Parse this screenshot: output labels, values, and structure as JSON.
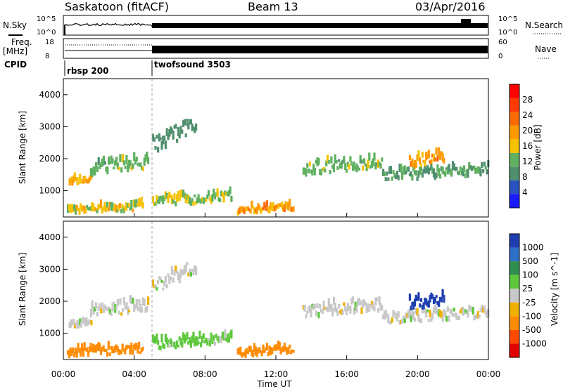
{
  "header": {
    "station": "Saskatoon (fitACF)",
    "beam": "Beam 13",
    "date": "03/Apr/2016"
  },
  "top_panels": {
    "nsky_label": "N.Sky",
    "nsky_ticks": [
      "10^5",
      "10^0"
    ],
    "nsearch_label": "N.Search",
    "nsearch_ticks": [
      "10^5",
      "10^0"
    ],
    "freq_label": "Freq.",
    "freq_unit": "[MHz]",
    "freq_ticks": [
      "18",
      "8"
    ],
    "nave_label": "Nave",
    "nave_ticks": [
      "60",
      "0"
    ],
    "cpid_label": "CPID",
    "cpid_segments": [
      {
        "name": "rbsp 200",
        "start_hour": 0,
        "end_hour": 5.0
      },
      {
        "name": "twofsound 3503",
        "start_hour": 5.0,
        "end_hour": 24
      }
    ]
  },
  "axes": {
    "x_title": "Time UT",
    "x_ticks": [
      "00:00",
      "04:00",
      "08:00",
      "12:00",
      "16:00",
      "20:00",
      "00:00"
    ],
    "y_title": "Slant Range [km]",
    "y_ticks": [
      "1000",
      "2000",
      "3000",
      "4000"
    ]
  },
  "colorbars": {
    "power": {
      "title": "Power [dB]",
      "ticks": [
        "4",
        "8",
        "12",
        "16",
        "20",
        "24",
        "28"
      ],
      "colors": [
        "#1a1aff",
        "#2a52be",
        "#4f8f6e",
        "#5fb060",
        "#f5c200",
        "#ff9a00",
        "#ff6a00",
        "#ff3a00",
        "#ff0000"
      ]
    },
    "velocity": {
      "title": "Velocity [m s^-1]",
      "ticks": [
        "1000",
        "500",
        "100",
        "25",
        "-25",
        "-100",
        "-500",
        "-1000"
      ],
      "colors": [
        "#1f3fb0",
        "#2e6fc8",
        "#2f8f4f",
        "#5dc83c",
        "#c8c8c8",
        "#f0b000",
        "#ff8c00",
        "#ff4a00",
        "#e00000"
      ]
    }
  },
  "chart_data": [
    {
      "type": "heatmap",
      "title": "Power [dB]",
      "xlabel": "Time UT",
      "ylabel": "Slant Range [km]",
      "xlim": [
        0,
        24
      ],
      "ylim": [
        180,
        4500
      ],
      "scatter_bands": [
        {
          "t0": 0.3,
          "t1": 1.6,
          "r0": 1150,
          "r1": 1500,
          "level": 18
        },
        {
          "t0": 1.5,
          "t1": 4.8,
          "r0": 1500,
          "r1": 2250,
          "level": 12
        },
        {
          "t0": 5.0,
          "t1": 7.5,
          "r0": 2200,
          "r1": 3200,
          "level": 8
        },
        {
          "t0": 0.2,
          "t1": 4.5,
          "r0": 250,
          "r1": 700,
          "level": 16
        },
        {
          "t0": 5.0,
          "t1": 9.5,
          "r0": 500,
          "r1": 1100,
          "level": 14
        },
        {
          "t0": 9.8,
          "t1": 13.0,
          "r0": 250,
          "r1": 700,
          "level": 20
        },
        {
          "t0": 13.5,
          "t1": 18.0,
          "r0": 1500,
          "r1": 2300,
          "level": 12
        },
        {
          "t0": 18.0,
          "t1": 24.0,
          "r0": 1300,
          "r1": 2000,
          "level": 10
        },
        {
          "t0": 19.5,
          "t1": 21.5,
          "r0": 1700,
          "r1": 2500,
          "level": 20
        }
      ]
    },
    {
      "type": "heatmap",
      "title": "Velocity [m s^-1]",
      "xlabel": "Time UT",
      "ylabel": "Slant Range [km]",
      "xlim": [
        0,
        24
      ],
      "ylim": [
        180,
        4500
      ],
      "scatter_bands": [
        {
          "t0": 0.3,
          "t1": 1.6,
          "r0": 1150,
          "r1": 1500,
          "level": 0
        },
        {
          "t0": 1.5,
          "t1": 4.8,
          "r0": 1500,
          "r1": 2250,
          "level": 0
        },
        {
          "t0": 5.0,
          "t1": 7.5,
          "r0": 2200,
          "r1": 3200,
          "level": 0
        },
        {
          "t0": 0.2,
          "t1": 4.5,
          "r0": 250,
          "r1": 700,
          "level": -200
        },
        {
          "t0": 5.0,
          "t1": 9.5,
          "r0": 500,
          "r1": 1100,
          "level": 50
        },
        {
          "t0": 9.8,
          "t1": 13.0,
          "r0": 250,
          "r1": 700,
          "level": -200
        },
        {
          "t0": 13.5,
          "t1": 18.0,
          "r0": 1500,
          "r1": 2300,
          "level": 0
        },
        {
          "t0": 18.0,
          "t1": 24.0,
          "r0": 1300,
          "r1": 2000,
          "level": 0
        },
        {
          "t0": 19.5,
          "t1": 21.5,
          "r0": 1700,
          "r1": 2500,
          "level": 600
        }
      ]
    }
  ]
}
